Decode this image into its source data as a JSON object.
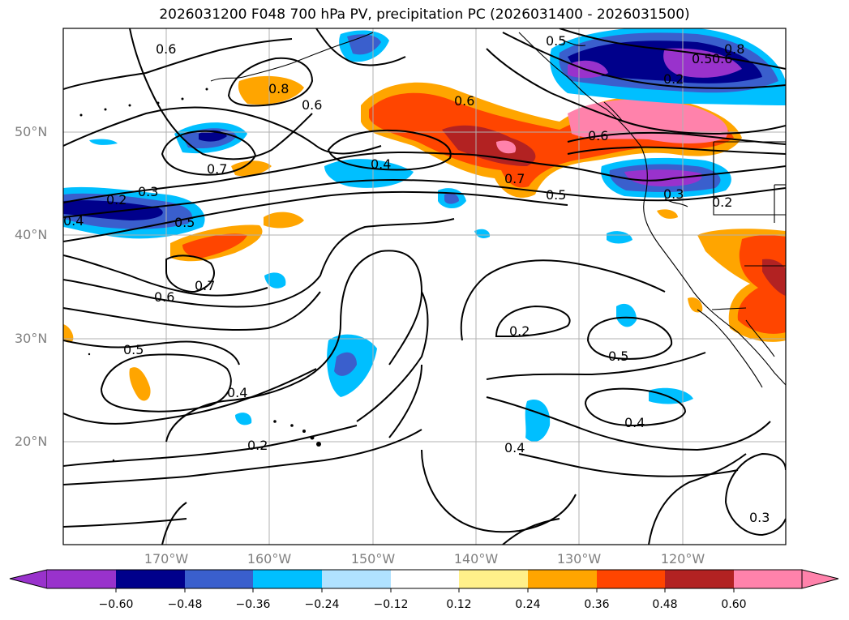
{
  "title": "2026031200 F048 700 hPa PV, precipitation PC (2026031400 - 2026031500)",
  "lat_labels": [
    "50°N",
    "40°N",
    "30°N",
    "20°N"
  ],
  "lon_labels": [
    "170°W",
    "160°W",
    "150°W",
    "140°W",
    "130°W",
    "120°W"
  ],
  "contour_labels": [
    "0.6",
    "0.8",
    "0.6",
    "0.7",
    "0.4",
    "0.2",
    "0.3",
    "0.5",
    "0.4",
    "0.6",
    "0.7",
    "0.5",
    "0.6",
    "0.7",
    "0.5",
    "0.3",
    "0.2",
    "0.5",
    "0.6",
    "0.2",
    "0.2",
    "0.5",
    "0.4",
    "0.4",
    "0.2",
    "0.4",
    "0.4",
    "0.3",
    "0.8",
    "0.5",
    "0.6"
  ],
  "colorbar": {
    "tick_labels": [
      "−0.60",
      "−0.48",
      "−0.36",
      "−0.24",
      "−0.12",
      "0.12",
      "0.24",
      "0.36",
      "0.48",
      "0.60"
    ],
    "colors": [
      "#9932cc",
      "#00008b",
      "#3a5fcd",
      "#00bfff",
      "#b0e2ff",
      "#ffffff",
      "#fff08a",
      "#ffa500",
      "#ff4500",
      "#b22222",
      "#ff82ab"
    ]
  },
  "colors": {
    "grid": "#b0b0b0",
    "contour": "#000000",
    "coast": "#000000"
  }
}
